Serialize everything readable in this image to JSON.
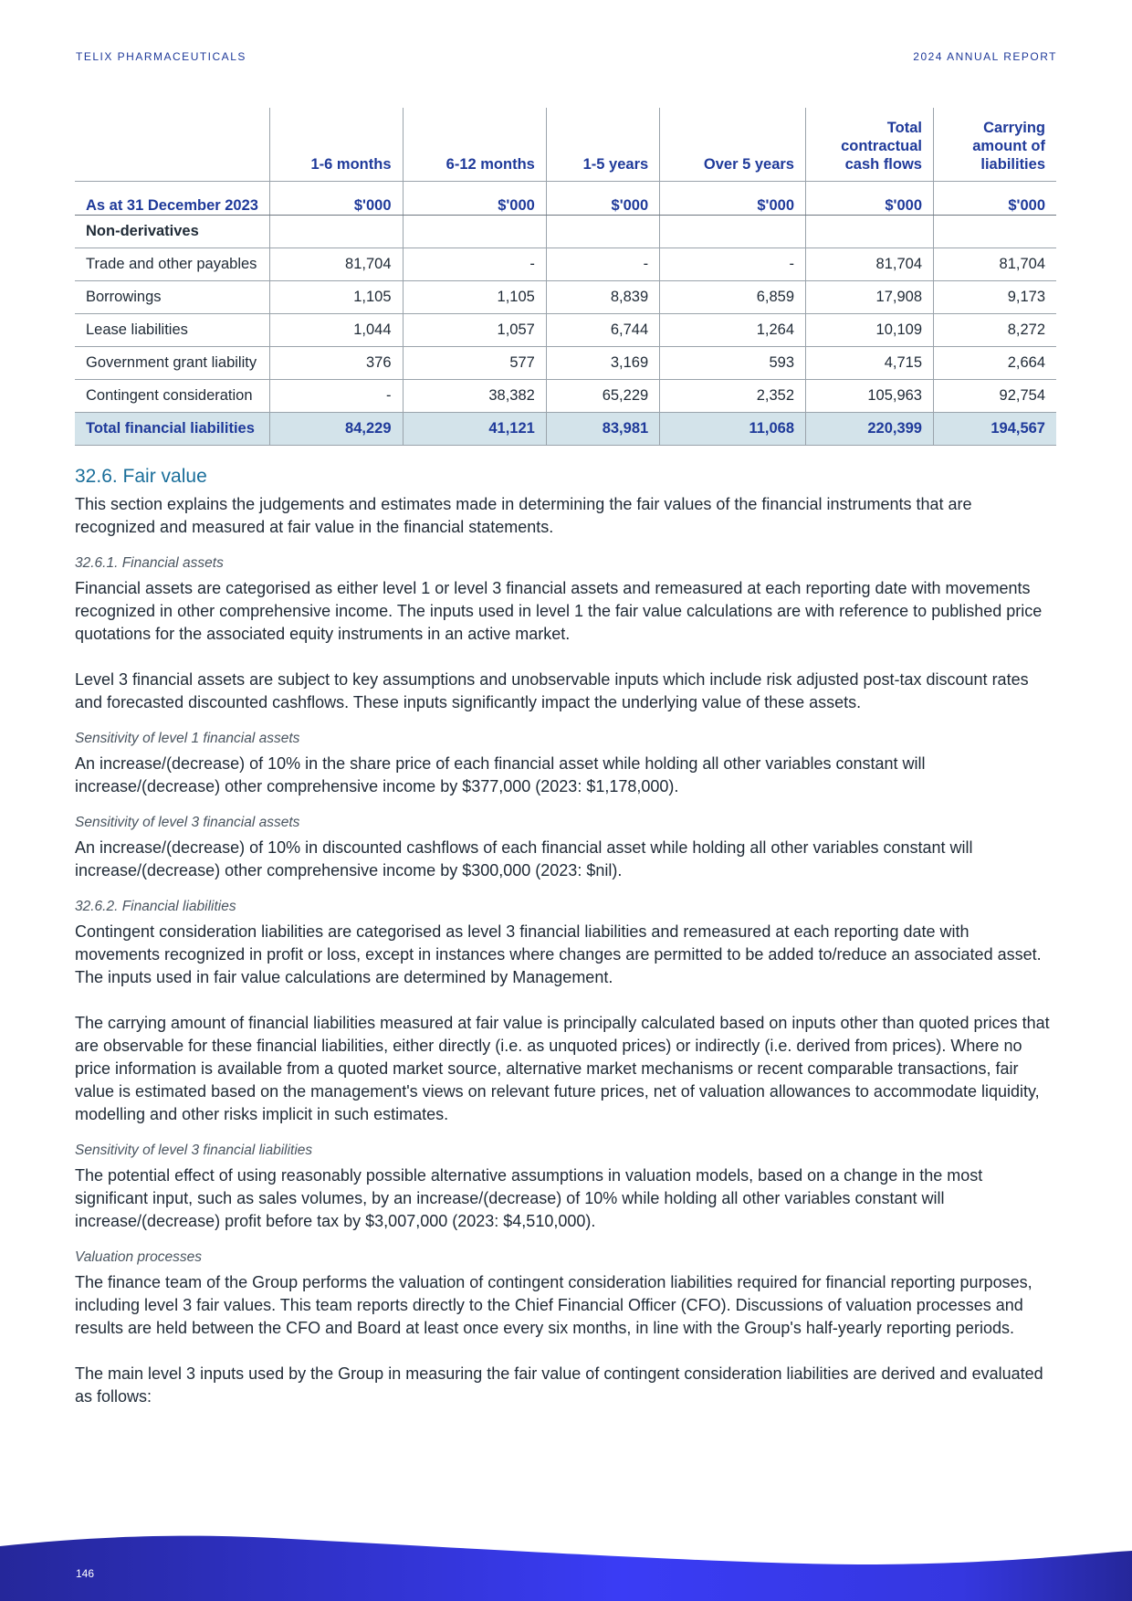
{
  "header": {
    "left": "TELIX PHARMACEUTICALS",
    "right": "2024 ANNUAL REPORT"
  },
  "table": {
    "columns": [
      "1-6 months",
      "6-12 months",
      "1-5 years",
      "Over 5 years",
      "Total contractual cash flows",
      "Carrying amount of liabilities"
    ],
    "period_label": "As at 31 December 2023",
    "unit": "$'000",
    "section": "Non-derivatives",
    "rows": [
      {
        "label": "Trade and other payables",
        "values": [
          "81,704",
          "-",
          "-",
          "-",
          "81,704",
          "81,704"
        ]
      },
      {
        "label": "Borrowings",
        "values": [
          "1,105",
          "1,105",
          "8,839",
          "6,859",
          "17,908",
          "9,173"
        ]
      },
      {
        "label": "Lease liabilities",
        "values": [
          "1,044",
          "1,057",
          "6,744",
          "1,264",
          "10,109",
          "8,272"
        ]
      },
      {
        "label": "Government grant liability",
        "values": [
          "376",
          "577",
          "3,169",
          "593",
          "4,715",
          "2,664"
        ]
      },
      {
        "label": "Contingent consideration",
        "values": [
          "-",
          "38,382",
          "65,229",
          "2,352",
          "105,963",
          "92,754"
        ]
      }
    ],
    "total": {
      "label": "Total financial liabilities",
      "values": [
        "84,229",
        "41,121",
        "83,981",
        "11,068",
        "220,399",
        "194,567"
      ]
    }
  },
  "section": {
    "title": "32.6. Fair value",
    "intro": "This section explains the judgements and estimates made in determining the fair values of the financial instruments that are recognized and measured at fair value in the financial statements.",
    "blocks": [
      {
        "sub": "32.6.1. Financial assets",
        "paras": [
          "Financial assets are categorised as either level 1 or level 3 financial assets and remeasured at each reporting date with movements recognized in other comprehensive income. The inputs used in level 1 the fair value calculations are with reference to published price quotations for the associated equity instruments in an active market.",
          "Level 3 financial assets are subject to key assumptions and unobservable inputs which include risk adjusted post-tax discount rates and forecasted discounted cashflows. These inputs significantly impact the underlying value of these assets."
        ]
      },
      {
        "sub": "Sensitivity of level 1 financial assets",
        "paras": [
          "An increase/(decrease) of 10% in the share price of each financial asset while holding all other variables constant will increase/(decrease) other comprehensive income by $377,000 (2023: $1,178,000)."
        ]
      },
      {
        "sub": "Sensitivity of level 3 financial assets",
        "paras": [
          "An increase/(decrease) of 10% in discounted cashflows of each financial asset while holding all other variables constant will increase/(decrease) other comprehensive income by $300,000 (2023: $nil)."
        ]
      },
      {
        "sub": "32.6.2. Financial liabilities",
        "paras": [
          "Contingent consideration liabilities are categorised as level 3 financial liabilities and remeasured at each reporting date with movements recognized in profit or loss, except in instances where changes are permitted to be added to/reduce an associated asset. The inputs used in fair value calculations are determined by Management.",
          "The carrying amount of financial liabilities measured at fair value is principally calculated based on inputs other than quoted prices that are observable for these financial liabilities, either directly (i.e. as unquoted prices) or indirectly (i.e. derived from prices). Where no price information is available from a quoted market source, alternative market mechanisms or recent comparable transactions, fair value is estimated based on the management's views on relevant future prices, net of valuation allowances to accommodate liquidity, modelling and other risks implicit in such estimates."
        ]
      },
      {
        "sub": "Sensitivity of level 3 financial liabilities",
        "paras": [
          "The potential effect of using reasonably possible alternative assumptions in valuation models, based on a change in the most significant input, such as sales volumes, by an increase/(decrease) of 10% while holding all other variables constant will increase/(decrease) profit before tax by $3,007,000 (2023: $4,510,000)."
        ]
      },
      {
        "sub": "Valuation processes",
        "paras": [
          "The finance team of the Group performs the valuation of contingent consideration liabilities required for financial reporting purposes, including level 3 fair values. This team reports directly to the Chief Financial Officer (CFO). Discussions of valuation processes and results are held between the CFO and Board at least once every six months, in line with the Group's half-yearly reporting periods.",
          "The main level 3 inputs used by the Group in measuring the fair value of contingent consideration liabilities are derived and evaluated as follows:"
        ]
      }
    ]
  },
  "footer": {
    "page_number": "146",
    "colors": [
      "#25279a",
      "#3a3cf5"
    ]
  }
}
